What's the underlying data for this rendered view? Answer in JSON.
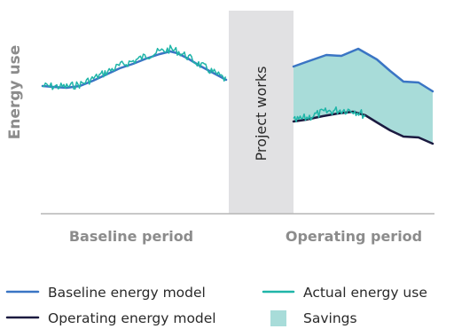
{
  "y_axis_label": "Energy use",
  "project_works_label": "Project works",
  "baseline_period_label": "Baseline period",
  "operating_period_label": "Operating period",
  "legend": {
    "baseline_model": "Baseline energy model",
    "actual_use": "Actual energy use",
    "operating_model": "Operating energy model",
    "savings": "Savings"
  },
  "colors": {
    "baseline_model": "#3a75c4",
    "actual_use": "#1fb5a8",
    "operating_model": "#1b1a40",
    "savings": "#a8dcd9",
    "project_works_band": "#e1e1e3",
    "axis": "#b5b5b5"
  }
}
